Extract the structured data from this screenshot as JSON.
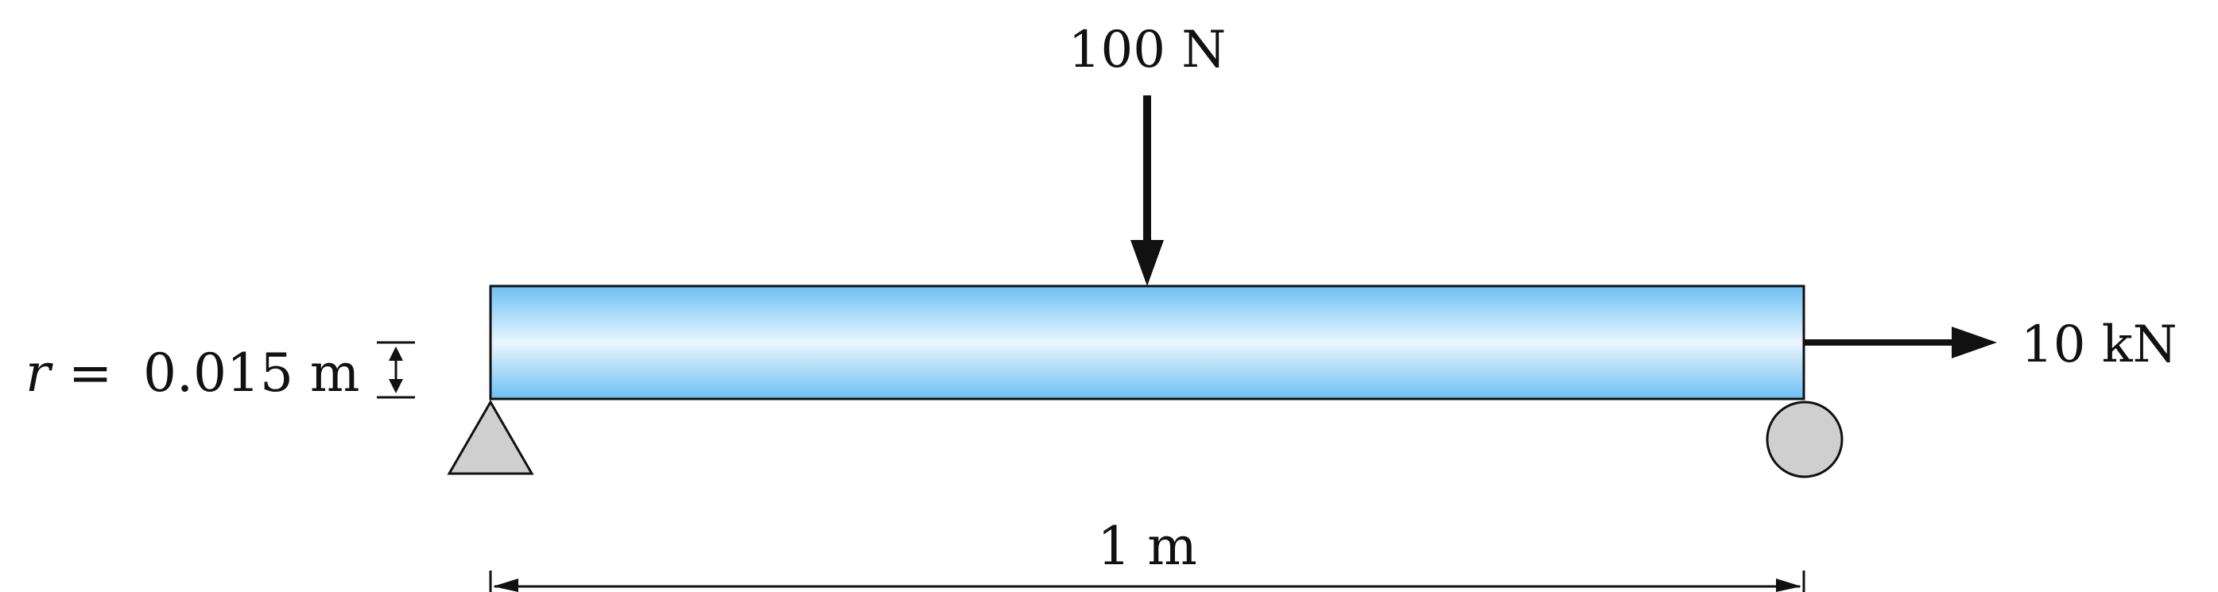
{
  "diagram": {
    "point_load": {
      "label": "100 N"
    },
    "axial_load": {
      "label": "10 kN"
    },
    "radius": {
      "symbol": "r",
      "equals": "=",
      "value": "0.015 m"
    },
    "span": {
      "label": "1 m"
    }
  },
  "colors": {
    "beam_edge": "#6cc0f2",
    "beam_center": "#eaf6fe",
    "beam_outline": "#111111",
    "support_fill": "#cfcfcf",
    "ink": "#111111"
  }
}
